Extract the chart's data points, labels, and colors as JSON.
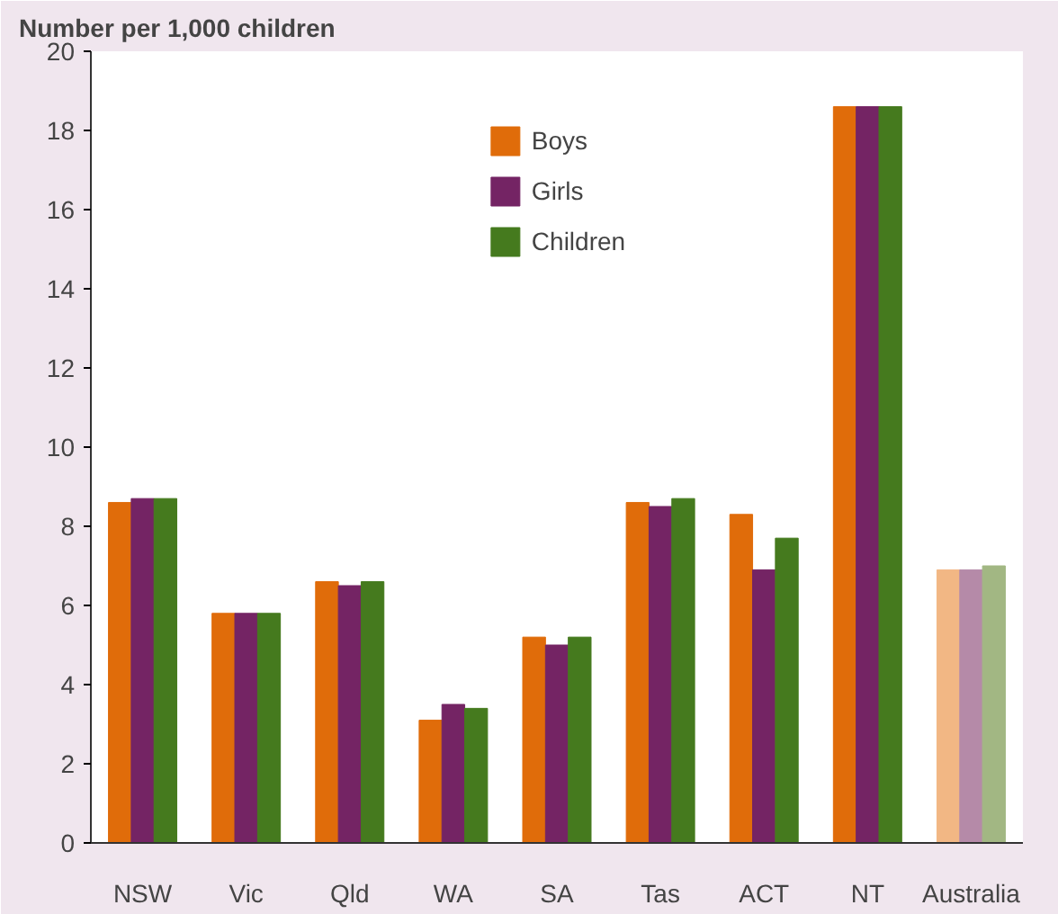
{
  "chart_data": {
    "type": "bar",
    "ylabel": "Number per 1,000 children",
    "categories": [
      "NSW",
      "Vic",
      "Qld",
      "WA",
      "SA",
      "Tas",
      "ACT",
      "NT",
      "Australia"
    ],
    "series": [
      {
        "name": "Boys",
        "color": "#e06c0a",
        "colors": [
          null,
          null,
          null,
          null,
          null,
          null,
          null,
          null,
          "#f2b784"
        ],
        "values": [
          8.6,
          5.8,
          6.6,
          3.1,
          5.2,
          8.6,
          8.3,
          18.6,
          6.9
        ]
      },
      {
        "name": "Girls",
        "color": "#742464",
        "colors": [
          null,
          null,
          null,
          null,
          null,
          null,
          null,
          null,
          "#b58aa8"
        ],
        "values": [
          8.7,
          5.8,
          6.5,
          3.5,
          5.0,
          8.5,
          6.9,
          18.6,
          6.9
        ]
      },
      {
        "name": "Children",
        "color": "#457a1e",
        "colors": [
          null,
          null,
          null,
          null,
          null,
          null,
          null,
          null,
          "#a2b783"
        ],
        "values": [
          8.7,
          5.8,
          6.6,
          3.4,
          5.2,
          8.7,
          7.7,
          18.6,
          7.0
        ]
      }
    ],
    "ylim": [
      0,
      20
    ],
    "yticks": [
      0,
      2,
      4,
      6,
      8,
      10,
      12,
      14,
      16,
      18,
      20
    ],
    "grid": false,
    "legend": "top"
  }
}
